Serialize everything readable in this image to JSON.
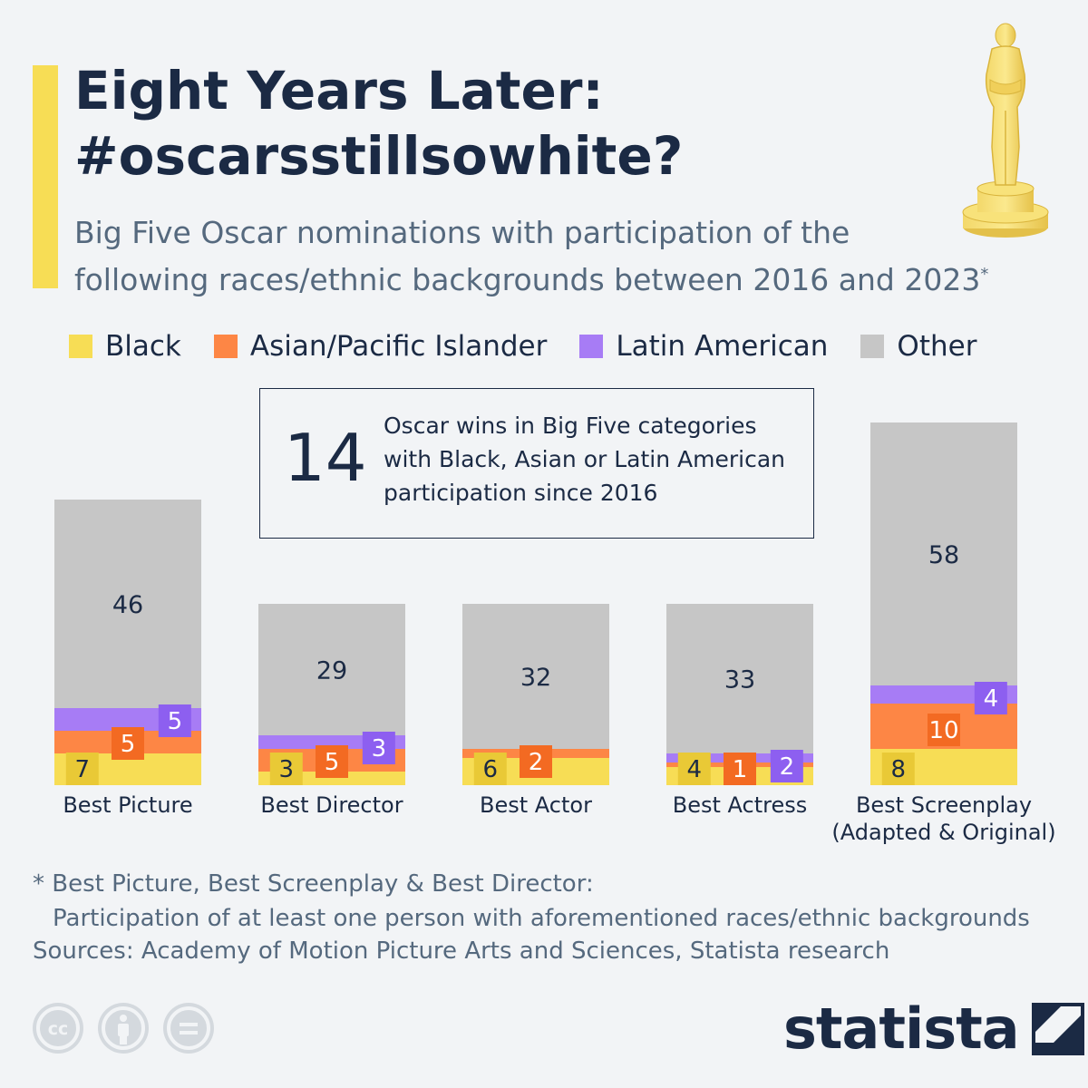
{
  "header": {
    "title": "Eight Years Later:\n#oscarsstillsowhite?",
    "subtitle": "Big Five Oscar nominations with participation of the\nfollowing races/ethnic backgrounds between 2016 and 2023",
    "subtitle_mark": "*"
  },
  "colors": {
    "accent": "#f7dd55",
    "black": "#f7dd55",
    "asian": "#fd8645",
    "latin": "#a77cf5",
    "other": "#c6c6c6",
    "label_black": "#e9c936",
    "label_asian": "#f36a22",
    "label_latin": "#8d5ff0",
    "text_dark": "#1b2a44"
  },
  "legend": [
    {
      "label": "Black",
      "color": "#f7dd55"
    },
    {
      "label": "Asian/Pacific Islander",
      "color": "#fd8645"
    },
    {
      "label": "Latin American",
      "color": "#a77cf5"
    },
    {
      "label": "Other",
      "color": "#c6c6c6"
    }
  ],
  "callout": {
    "number": "14",
    "text": "Oscar wins in Big Five categories\nwith Black, Asian or Latin American\nparticipation since 2016"
  },
  "chart_data": {
    "type": "bar",
    "stacked": true,
    "categories": [
      "Best Picture",
      "Best Director",
      "Best Actor",
      "Best Actress",
      "Best Screenplay\n(Adapted & Original)"
    ],
    "series": [
      {
        "name": "Black",
        "values": [
          7,
          3,
          6,
          4,
          8
        ]
      },
      {
        "name": "Asian/Pacific Islander",
        "values": [
          5,
          5,
          2,
          1,
          10
        ]
      },
      {
        "name": "Latin American",
        "values": [
          5,
          3,
          0,
          2,
          4
        ]
      },
      {
        "name": "Other",
        "values": [
          46,
          29,
          32,
          33,
          58
        ]
      }
    ],
    "grid": false,
    "legend_position": "top"
  },
  "footnote": {
    "line1": "* Best Picture, Best Screenplay & Best Director:",
    "line2": "Participation of at least one person with aforementioned races/ethnic backgrounds"
  },
  "sources": "Sources: Academy of Motion Picture Arts and Sciences, Statista research",
  "brand": {
    "name": "statista"
  },
  "license_icons": [
    "cc-icon",
    "attribution-icon",
    "no-derivatives-icon"
  ]
}
